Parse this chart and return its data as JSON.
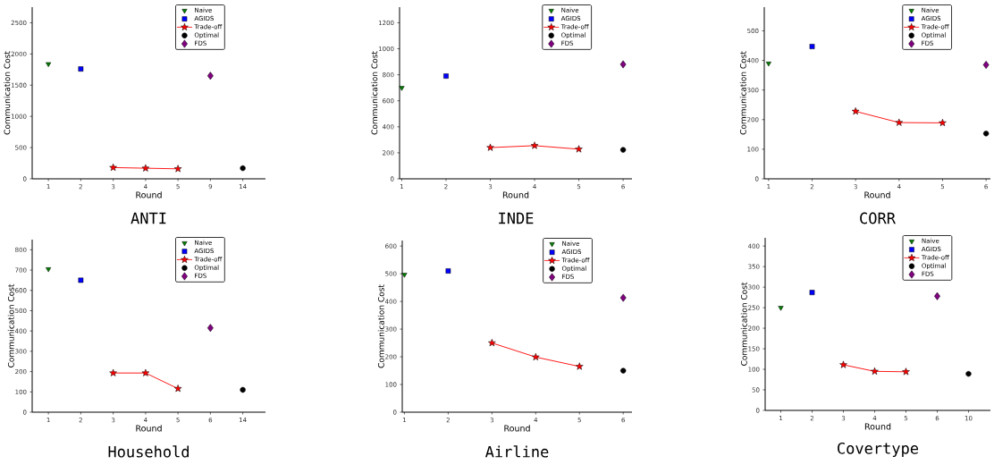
{
  "chart_data": [
    {
      "type": "scatter",
      "title": "ANTI",
      "xlabel": "Round",
      "ylabel": "Communication Cost",
      "categories": [
        "1",
        "2",
        "3",
        "4",
        "5",
        "9",
        "14"
      ],
      "ylim": [
        0,
        2750
      ],
      "yticks": [
        0,
        500,
        1000,
        1500,
        2000,
        2500
      ],
      "legend": "top right",
      "series": [
        {
          "name": "Naive",
          "marker": "triangle",
          "color": "#008000",
          "values": [
            1840,
            null,
            null,
            null,
            null,
            null,
            null
          ]
        },
        {
          "name": "AGIDS",
          "marker": "square",
          "color": "#0000ff",
          "values": [
            null,
            1760,
            null,
            null,
            null,
            null,
            null
          ]
        },
        {
          "name": "Trade-off",
          "type": "line",
          "marker": "star",
          "color": "#ff0000",
          "values": [
            null,
            null,
            180,
            170,
            160,
            null,
            null
          ]
        },
        {
          "name": "Optimal",
          "marker": "circle",
          "color": "#000000",
          "values": [
            null,
            null,
            null,
            null,
            null,
            null,
            170
          ]
        },
        {
          "name": "FDS",
          "marker": "diamond",
          "color": "#800080",
          "values": [
            null,
            null,
            null,
            null,
            null,
            1650,
            null
          ]
        }
      ]
    },
    {
      "type": "scatter",
      "title": "INDE",
      "xlabel": "Round",
      "ylabel": "Communication Cost",
      "x": [
        1,
        2,
        3,
        4,
        5,
        6
      ],
      "xlim": [
        0.95,
        6.2
      ],
      "xticks": [
        1,
        2,
        3,
        4,
        5,
        6
      ],
      "ylim": [
        0,
        1320
      ],
      "yticks": [
        0,
        200,
        400,
        600,
        800,
        1000,
        1200
      ],
      "legend": "top right",
      "series": [
        {
          "name": "Naive",
          "marker": "triangle",
          "color": "#008000",
          "values": [
            700,
            null,
            null,
            null,
            null,
            null
          ]
        },
        {
          "name": "AGIDS",
          "marker": "square",
          "color": "#0000ff",
          "values": [
            null,
            790,
            null,
            null,
            null,
            null
          ]
        },
        {
          "name": "Trade-off",
          "type": "line",
          "marker": "star",
          "color": "#ff0000",
          "values": [
            null,
            null,
            240,
            255,
            228,
            null
          ]
        },
        {
          "name": "Optimal",
          "marker": "circle",
          "color": "#000000",
          "values": [
            null,
            null,
            null,
            null,
            null,
            223
          ]
        },
        {
          "name": "FDS",
          "marker": "diamond",
          "color": "#800080",
          "values": [
            null,
            null,
            null,
            null,
            null,
            880
          ]
        }
      ]
    },
    {
      "type": "scatter",
      "title": "CORR",
      "xlabel": "Round",
      "ylabel": "Communication Cost",
      "x": [
        1,
        2,
        3,
        4,
        5,
        6
      ],
      "xlim": [
        0.9,
        6.1
      ],
      "xticks": [
        1,
        2,
        3,
        4,
        5,
        6
      ],
      "ylim": [
        0,
        580
      ],
      "yticks": [
        0,
        100,
        200,
        300,
        400,
        500
      ],
      "legend": "top right",
      "series": [
        {
          "name": "Naive",
          "marker": "triangle",
          "color": "#008000",
          "values": [
            390,
            null,
            null,
            null,
            null,
            null
          ]
        },
        {
          "name": "AGIDS",
          "marker": "square",
          "color": "#0000ff",
          "values": [
            null,
            447,
            null,
            null,
            null,
            null
          ]
        },
        {
          "name": "Trade-off",
          "type": "line",
          "marker": "star",
          "color": "#ff0000",
          "values": [
            null,
            null,
            228,
            190,
            189,
            null
          ]
        },
        {
          "name": "Optimal",
          "marker": "circle",
          "color": "#000000",
          "values": [
            null,
            null,
            null,
            null,
            null,
            153
          ]
        },
        {
          "name": "FDS",
          "marker": "diamond",
          "color": "#800080",
          "values": [
            null,
            null,
            null,
            null,
            null,
            385
          ]
        }
      ]
    },
    {
      "type": "scatter",
      "title": "Household",
      "xlabel": "Round",
      "ylabel": "Communication Cost",
      "categories": [
        "1",
        "2",
        "3",
        "4",
        "5",
        "6",
        "14"
      ],
      "ylim": [
        0,
        850
      ],
      "yticks": [
        0,
        100,
        200,
        300,
        400,
        500,
        600,
        700,
        800
      ],
      "legend": "top right",
      "series": [
        {
          "name": "Naive",
          "marker": "triangle",
          "color": "#008000",
          "values": [
            705,
            null,
            null,
            null,
            null,
            null,
            null
          ]
        },
        {
          "name": "AGIDS",
          "marker": "square",
          "color": "#0000ff",
          "values": [
            null,
            650,
            null,
            null,
            null,
            null,
            null
          ]
        },
        {
          "name": "Trade-off",
          "type": "line",
          "marker": "star",
          "color": "#ff0000",
          "values": [
            null,
            null,
            193,
            193,
            116,
            null,
            null
          ]
        },
        {
          "name": "Optimal",
          "marker": "circle",
          "color": "#000000",
          "values": [
            null,
            null,
            null,
            null,
            null,
            null,
            110
          ]
        },
        {
          "name": "FDS",
          "marker": "diamond",
          "color": "#800080",
          "values": [
            null,
            null,
            null,
            null,
            null,
            415,
            null
          ]
        }
      ]
    },
    {
      "type": "scatter",
      "title": "Airline",
      "xlabel": "Round",
      "ylabel": "Communication Cost",
      "x": [
        1,
        2,
        3,
        4,
        5,
        6
      ],
      "xlim": [
        0.95,
        6.2
      ],
      "xticks": [
        1,
        2,
        3,
        4,
        5,
        6
      ],
      "ylim": [
        0,
        620
      ],
      "yticks": [
        0,
        100,
        200,
        300,
        400,
        500,
        600
      ],
      "legend": "top right",
      "series": [
        {
          "name": "Naive",
          "marker": "triangle",
          "color": "#008000",
          "values": [
            497,
            null,
            null,
            null,
            null,
            null
          ]
        },
        {
          "name": "AGIDS",
          "marker": "square",
          "color": "#0000ff",
          "values": [
            null,
            510,
            null,
            null,
            null,
            null
          ]
        },
        {
          "name": "Trade-off",
          "type": "line",
          "marker": "star",
          "color": "#ff0000",
          "values": [
            null,
            null,
            250,
            199,
            165,
            null
          ]
        },
        {
          "name": "Optimal",
          "marker": "circle",
          "color": "#000000",
          "values": [
            null,
            null,
            null,
            null,
            null,
            150
          ]
        },
        {
          "name": "FDS",
          "marker": "diamond",
          "color": "#800080",
          "values": [
            null,
            null,
            null,
            null,
            null,
            413
          ]
        }
      ]
    },
    {
      "type": "scatter",
      "title": "Covertype",
      "xlabel": "Round",
      "ylabel": "Communication Cost",
      "categories": [
        "1",
        "2",
        "3",
        "4",
        "5",
        "6",
        "10"
      ],
      "ylim": [
        0,
        420
      ],
      "yticks": [
        0,
        50,
        100,
        150,
        200,
        250,
        300,
        350,
        400
      ],
      "legend": "top right",
      "series": [
        {
          "name": "Naive",
          "marker": "triangle",
          "color": "#008000",
          "values": [
            250,
            null,
            null,
            null,
            null,
            null,
            null
          ]
        },
        {
          "name": "AGIDS",
          "marker": "square",
          "color": "#0000ff",
          "values": [
            null,
            287,
            null,
            null,
            null,
            null,
            null
          ]
        },
        {
          "name": "Trade-off",
          "type": "line",
          "marker": "star",
          "color": "#ff0000",
          "values": [
            null,
            null,
            111,
            95,
            94,
            null,
            null
          ]
        },
        {
          "name": "Optimal",
          "marker": "circle",
          "color": "#000000",
          "values": [
            null,
            null,
            null,
            null,
            null,
            null,
            89
          ]
        },
        {
          "name": "FDS",
          "marker": "diamond",
          "color": "#800080",
          "values": [
            null,
            null,
            null,
            null,
            null,
            278,
            null
          ]
        }
      ]
    }
  ]
}
